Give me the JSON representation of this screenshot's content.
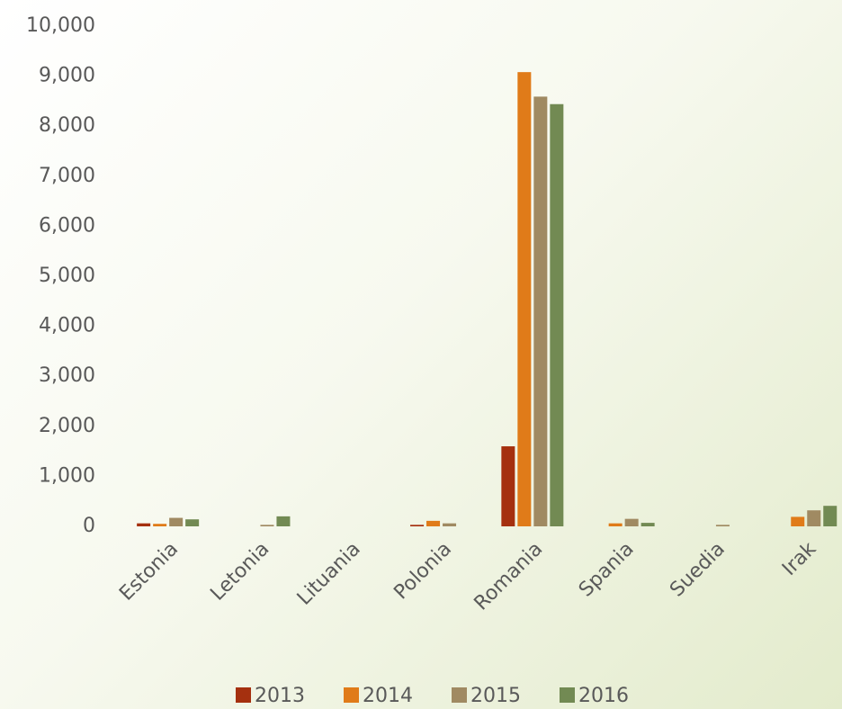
{
  "chart_data": {
    "type": "bar",
    "categories": [
      "Estonia",
      "Letonia",
      "Lituania",
      "Polonia",
      "Romania",
      "Spania",
      "Suedia",
      "Irak"
    ],
    "series": [
      {
        "name": "2013",
        "color": "#a5300f",
        "values": [
          60,
          0,
          0,
          30,
          1600,
          0,
          0,
          0
        ]
      },
      {
        "name": "2014",
        "color": "#e07b19",
        "values": [
          50,
          0,
          0,
          110,
          9080,
          60,
          0,
          190
        ]
      },
      {
        "name": "2015",
        "color": "#a08a62",
        "values": [
          170,
          30,
          0,
          60,
          8590,
          150,
          30,
          320
        ]
      },
      {
        "name": "2016",
        "color": "#728a53",
        "values": [
          140,
          200,
          0,
          0,
          8440,
          70,
          0,
          410
        ]
      }
    ],
    "ylim": [
      0,
      10000
    ],
    "yticks": [
      0,
      {
        "value": 1000,
        "label": "1,000"
      },
      {
        "value": 2000,
        "label": "2,000"
      },
      {
        "value": 3000,
        "label": "3,000"
      },
      {
        "value": 4000,
        "label": "4,000"
      },
      {
        "value": 5000,
        "label": "5,000"
      },
      {
        "value": 6000,
        "label": "6,000"
      },
      {
        "value": 7000,
        "label": "7,000"
      },
      {
        "value": 8000,
        "label": "8,000"
      },
      {
        "value": 9000,
        "label": "9,000"
      },
      {
        "value": 10000,
        "label": "10,000"
      }
    ],
    "legend": "bottom"
  }
}
